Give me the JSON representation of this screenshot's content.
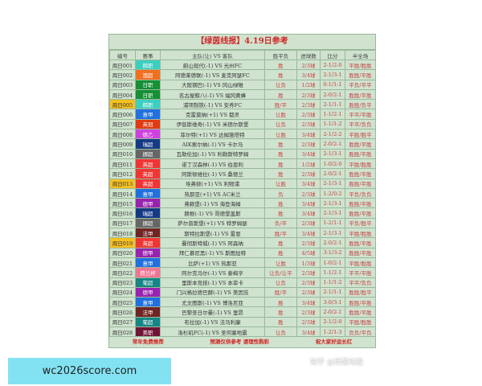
{
  "title": "【绿茵线报】4.19日参考",
  "headers": [
    "编号",
    "赛事",
    "主队(让) VS 客队",
    "胜平负",
    "进球数",
    "比分",
    "半全场"
  ],
  "rows": [
    {
      "no": "周日001",
      "league": "韩职",
      "color": "#3ccfc0",
      "match": "蔚山现代(-1) VS 光州FC",
      "wdl": "胜",
      "goals": "2/3球",
      "score": "2-1/2-0",
      "hf": "平胜/胜胜",
      "hl": false
    },
    {
      "no": "周日002",
      "league": "澳超",
      "color": "#f07020",
      "match": "阿德莱德联(-1) VS 麦克阿瑟FC",
      "wdl": "胜",
      "goals": "3/4球",
      "score": "2-1/3-1",
      "hf": "胜胜/平胜",
      "hl": false
    },
    {
      "no": "周日003",
      "league": "日职",
      "color": "#159035",
      "match": "大阪钢巴(-1) VS 冈山绿雉",
      "wdl": "让负",
      "goals": "1/2球",
      "score": "0-1/1-1",
      "hf": "平负/平平",
      "hl": false
    },
    {
      "no": "周日004",
      "league": "日职",
      "color": "#159035",
      "match": "名古屋鲸八(-1) VS 福冈黄蜂",
      "wdl": "胜",
      "goals": "2/3球",
      "score": "2-0/2-1",
      "hf": "胜胜/平胜",
      "hl": false
    },
    {
      "no": "周日005",
      "league": "韩职",
      "color": "#3ccfc0",
      "match": "浦项制铁(-1) VS 安养FC",
      "wdl": "胜/平",
      "goals": "2/3球",
      "score": "2-1/1-1",
      "hf": "胜胜/负平",
      "hl": true
    },
    {
      "no": "周日006",
      "league": "意甲",
      "color": "#2070e0",
      "match": "克雷莫纳(+1) VS 都灵",
      "wdl": "让胜",
      "goals": "2/3球",
      "score": "1-1/2-1",
      "hf": "平平/平胜",
      "hl": false
    },
    {
      "no": "周日007",
      "league": "英冠",
      "color": "#e03a10",
      "match": "伊普斯维奇(-1) VS 米德尔斯堡",
      "wdl": "让负",
      "goals": "2/3球",
      "score": "1-1/1-2",
      "hf": "平平/负负",
      "hl": false
    },
    {
      "no": "周日008",
      "league": "德乙",
      "color": "#d040e0",
      "match": "菲尔特(+1) VS 达姆施塔特",
      "wdl": "让胜",
      "goals": "3/4球",
      "score": "2-1/2-2",
      "hf": "平胜/胜平",
      "hl": false
    },
    {
      "no": "周日009",
      "league": "瑞超",
      "color": "#153a85",
      "match": "AIK索尔纳(-1) VS 卡尔马",
      "wdl": "胜",
      "goals": "2/3球",
      "score": "2-0/2-1",
      "hf": "胜胜/平胜",
      "hl": false
    },
    {
      "no": "周日010",
      "league": "挪超",
      "color": "#666666",
      "match": "瓦勒伦加(-1) VS 利勒斯特罗姆",
      "wdl": "胜",
      "goals": "3/4球",
      "score": "2-1/3-1",
      "hf": "胜胜/平胜",
      "hl": false
    },
    {
      "no": "周日011",
      "league": "英超",
      "color": "#f03535",
      "match": "诺丁汉森林(-1) VS 伯恩利",
      "wdl": "胜",
      "goals": "1/2球",
      "score": "1-0/2-0",
      "hf": "平胜/胜胜",
      "hl": false
    },
    {
      "no": "周日012",
      "league": "英超",
      "color": "#f03535",
      "match": "阿斯顿维拉(-1) VS 桑德兰",
      "wdl": "胜",
      "goals": "2/3球",
      "score": "2-0/2-1",
      "hf": "胜胜/平胜",
      "hl": false
    },
    {
      "no": "周日013",
      "league": "英超",
      "color": "#f03535",
      "match": "埃弗顿(+1) VS 利物浦",
      "wdl": "让胜",
      "goals": "3/4球",
      "score": "2-1/3-1",
      "hf": "胜胜/平胜",
      "hl": true
    },
    {
      "no": "周日014",
      "league": "意甲",
      "color": "#2070e0",
      "match": "热那亚(+1) VS AC米兰",
      "wdl": "负",
      "goals": "2/3球",
      "score": "1-2/0-2",
      "hf": "平负/负负",
      "hl": false
    },
    {
      "no": "周日015",
      "league": "德甲",
      "color": "#9a22b0",
      "match": "弗赖堡(-1) VS 海登海姆",
      "wdl": "胜",
      "goals": "3/4球",
      "score": "2-1/3-1",
      "hf": "胜胜/平胜",
      "hl": false
    },
    {
      "no": "周日016",
      "league": "瑞超",
      "color": "#153a85",
      "match": "赫根(-1) VS 哥德堡盖斯",
      "wdl": "胜",
      "goals": "3/4球",
      "score": "2-1/3-1",
      "hf": "胜胜/平胜",
      "hl": false
    },
    {
      "no": "周日017",
      "league": "挪超",
      "color": "#666666",
      "match": "萨尔普斯堡(+1) VS 特罗姆瑟",
      "wdl": "负/平",
      "goals": "2/3球",
      "score": "1-2/1-1",
      "hf": "平负/胜平",
      "hl": false
    },
    {
      "no": "周日018",
      "league": "法甲",
      "color": "#702525",
      "match": "斯特拉斯堡(-1) VS 雷恩",
      "wdl": "胜/平",
      "goals": "3/4球",
      "score": "2-1/3-1",
      "hf": "平胜/胜胜",
      "hl": false
    },
    {
      "no": "周日019",
      "league": "英超",
      "color": "#f03535",
      "match": "曼彻斯特城(-1) VS 阿森纳",
      "wdl": "胜",
      "goals": "2/3球",
      "score": "2-0/2-1",
      "hf": "胜胜/平胜",
      "hl": true
    },
    {
      "no": "周日020",
      "league": "德甲",
      "color": "#9a22b0",
      "match": "拜仁慕尼黑(-1) VS 斯图加特",
      "wdl": "胜",
      "goals": "4/5球",
      "score": "3-1/3-2",
      "hf": "胜胜/平胜",
      "hl": false
    },
    {
      "no": "周日021",
      "league": "意甲",
      "color": "#2070e0",
      "match": "比萨(+1) VS 热那亚",
      "wdl": "让胜",
      "goals": "1/3球",
      "score": "1-0/2-1",
      "hf": "平胜/胜胜",
      "hl": false
    },
    {
      "no": "周日022",
      "league": "荷兰杯",
      "color": "#f07595",
      "match": "阿尔克马尔(-1) VS 泰梅亨",
      "wdl": "让负/让平",
      "goals": "2/3球",
      "score": "1-1/2-1",
      "hf": "平平/平胜",
      "hl": false
    },
    {
      "no": "周日023",
      "league": "葡超",
      "color": "#158585",
      "match": "里斯本竞技(-1) VS 本菲卡",
      "wdl": "让负",
      "goals": "2/3球",
      "score": "1-1/1-2",
      "hf": "平平/负负",
      "hl": false
    },
    {
      "no": "周日024",
      "league": "德甲",
      "color": "#9a22b0",
      "match": "门兴格拉德巴赫(-1) VS 美因茨",
      "wdl": "胜/平",
      "goals": "2/3球",
      "score": "2-1/1-1",
      "hf": "胜胜/胜平",
      "hl": false
    },
    {
      "no": "周日025",
      "league": "意甲",
      "color": "#2070e0",
      "match": "尤文图斯(-1) VS 博洛尼亚",
      "wdl": "胜",
      "goals": "3/4球",
      "score": "3-0/3-1",
      "hf": "胜胜/平胜",
      "hl": false
    },
    {
      "no": "周日026",
      "league": "法甲",
      "color": "#702525",
      "match": "巴黎圣日尔曼(-1) VS 里昂",
      "wdl": "胜",
      "goals": "2/3球",
      "score": "2-0/2-1",
      "hf": "胜胜/平胜",
      "hl": false
    },
    {
      "no": "周日027",
      "league": "葡超",
      "color": "#158585",
      "match": "布拉加(-1) VS 法马利康",
      "wdl": "胜",
      "goals": "2/3球",
      "score": "2-1/2-0",
      "hf": "平胜/胜胜",
      "hl": false
    },
    {
      "no": "周日028",
      "league": "美职",
      "color": "#701535",
      "match": "洛杉矶FC(-1) VS 圣何塞地震",
      "wdl": "让负",
      "goals": "3/4球",
      "score": "1-2/1-3",
      "hf": "负负/平负",
      "hl": false
    }
  ],
  "footer": [
    "常年免费推荐",
    "预测仅供参考  请理性购彩",
    "祝大家好运长红"
  ],
  "zhihu_watermark": "知乎 @绿茵线报",
  "site_watermark": "wc2026score.com"
}
